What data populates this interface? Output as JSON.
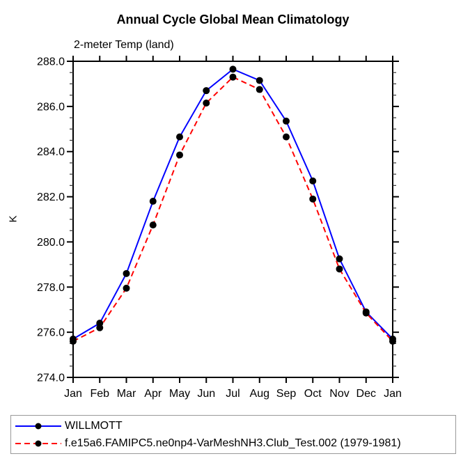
{
  "chart_data": {
    "type": "line",
    "title": "Annual Cycle Global Mean Climatology",
    "subtitle": "2-meter Temp (land)",
    "xlabel": "",
    "ylabel": "K",
    "ylim": [
      274.0,
      288.0
    ],
    "ytick_major_step": 2.0,
    "ytick_minor_step": 0.5,
    "ytick_labels": [
      "274.0",
      "276.0",
      "278.0",
      "280.0",
      "282.0",
      "284.0",
      "286.0",
      "288.0"
    ],
    "categories": [
      "Jan",
      "Feb",
      "Mar",
      "Apr",
      "May",
      "Jun",
      "Jul",
      "Aug",
      "Sep",
      "Oct",
      "Nov",
      "Dec",
      "Jan"
    ],
    "grid": false,
    "axis_color": "#000000",
    "marker": {
      "shape": "circle",
      "color": "#000000"
    },
    "legend_position": "bottom-left-box",
    "series": [
      {
        "name": "WILLMOTT",
        "color": "#0000ff",
        "line_style": "solid",
        "values": [
          275.7,
          276.4,
          278.6,
          281.8,
          284.65,
          286.7,
          287.65,
          287.15,
          285.35,
          282.7,
          279.25,
          276.9,
          275.7
        ]
      },
      {
        "name": "f.e15a6.FAMIPC5.ne0np4-VarMeshNH3.Club_Test.002 (1979-1981)",
        "color": "#ff0000",
        "line_style": "dashed",
        "values": [
          275.6,
          276.2,
          277.95,
          280.75,
          283.85,
          286.15,
          287.3,
          286.75,
          284.65,
          281.9,
          278.8,
          276.85,
          275.6
        ]
      }
    ]
  }
}
